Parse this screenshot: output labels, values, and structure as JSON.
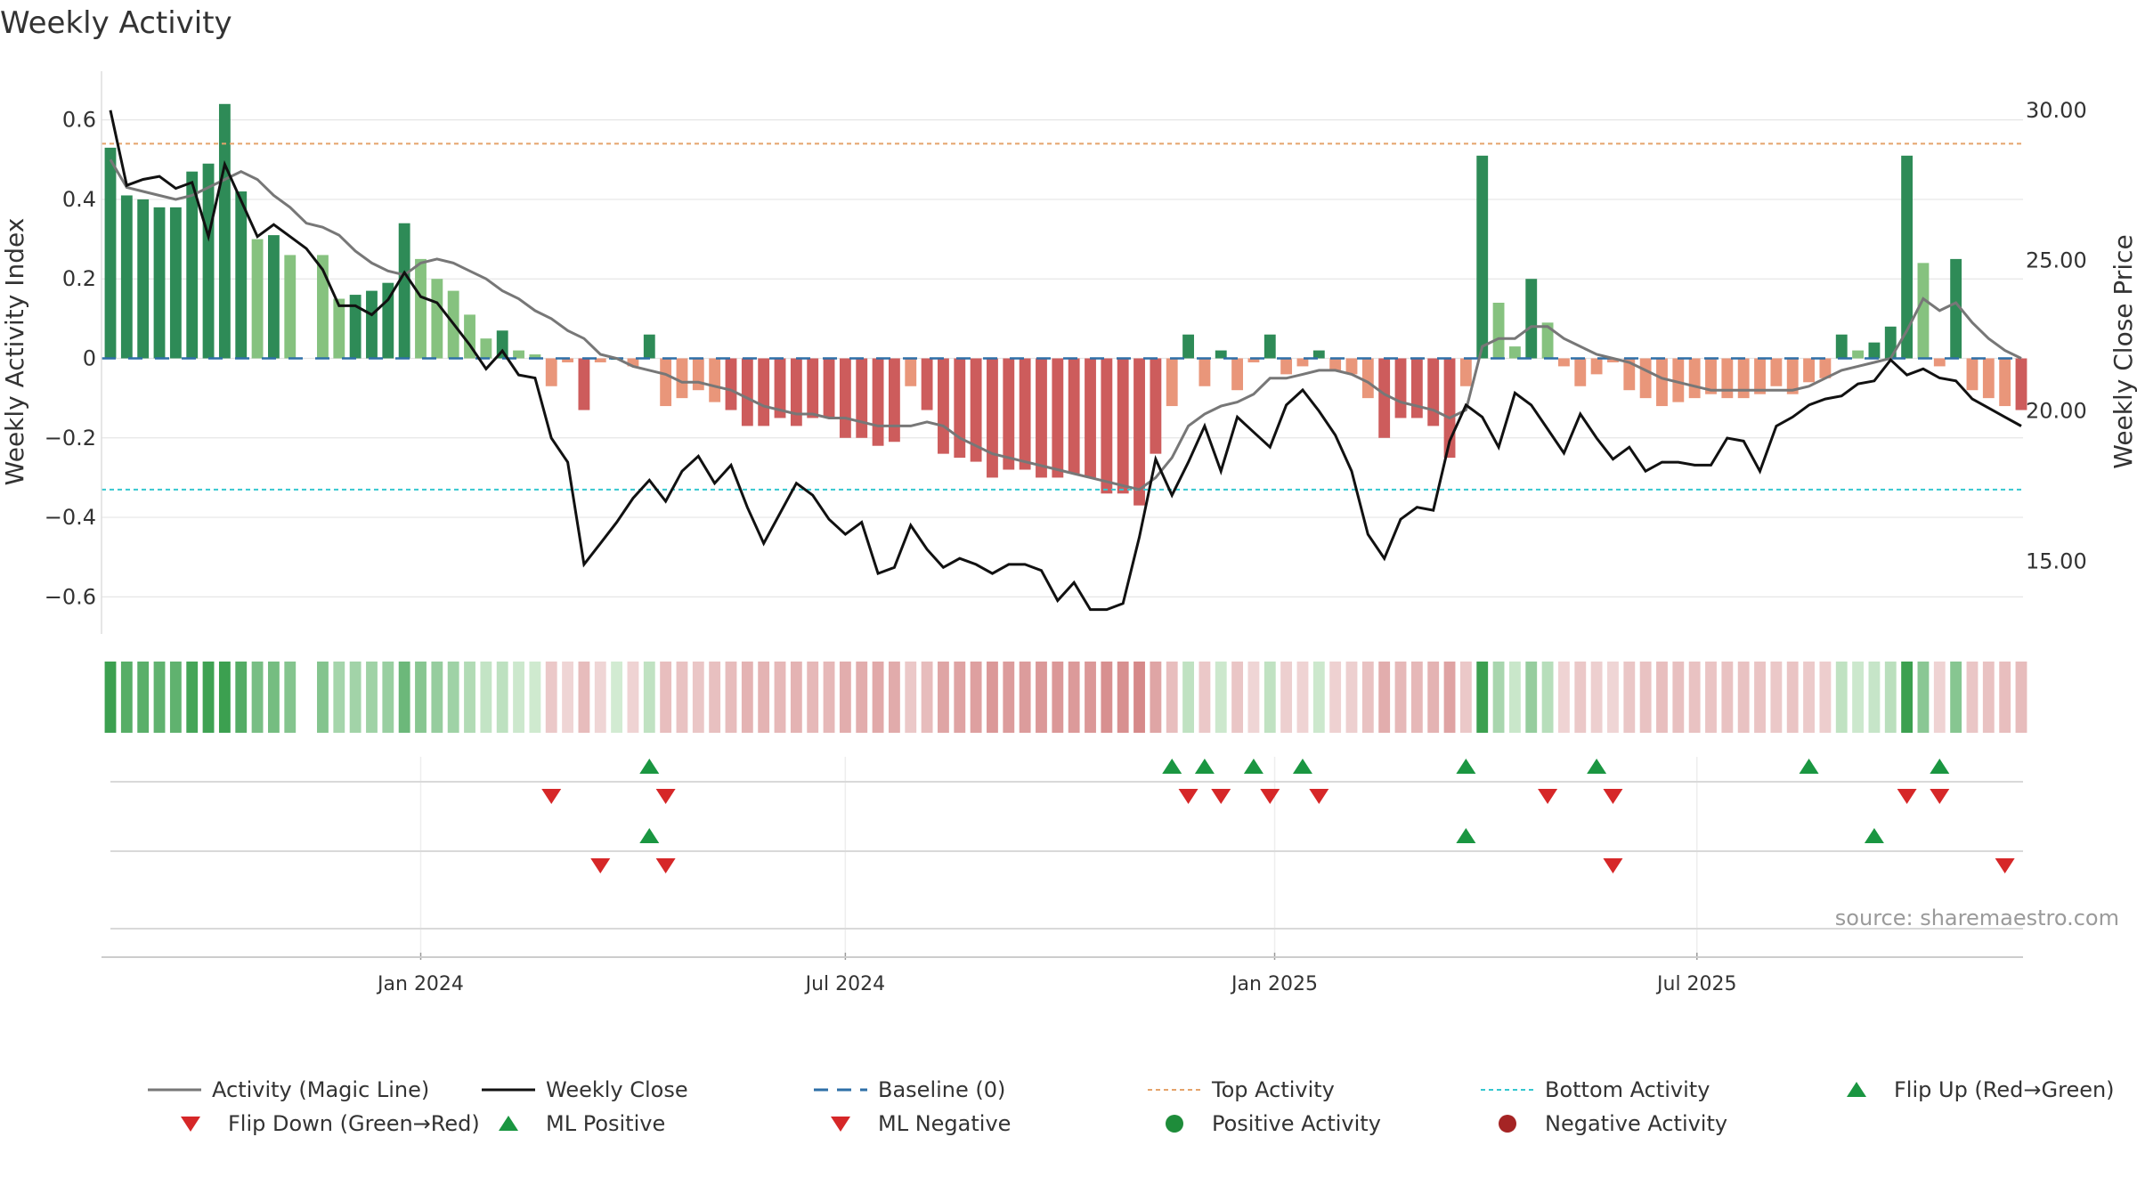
{
  "chart_data": {
    "type": "bar",
    "title": "Weekly Activity",
    "ylabel": "Weekly Activity Index",
    "y2label": "Weekly Close Price",
    "ylim": [
      -0.7,
      0.7
    ],
    "y2lim": [
      12.5,
      31.0
    ],
    "yticks": [
      {
        "v": 0.6,
        "t": "0.6"
      },
      {
        "v": 0.4,
        "t": "0.4"
      },
      {
        "v": 0.2,
        "t": "0.2"
      },
      {
        "v": 0,
        "t": "0"
      },
      {
        "v": -0.2,
        "t": "−0.2"
      },
      {
        "v": -0.4,
        "t": "−0.4"
      },
      {
        "v": -0.6,
        "t": "−0.6"
      }
    ],
    "y2ticks": [
      {
        "v": 30,
        "t": "30.00"
      },
      {
        "v": 25,
        "t": "25.00"
      },
      {
        "v": 20,
        "t": "20.00"
      },
      {
        "v": 15,
        "t": "15.00"
      }
    ],
    "start_date": "2023-08-21",
    "xticks": [
      {
        "d": "2024-01-01",
        "t": "Jan 2024"
      },
      {
        "d": "2024-07-01",
        "t": "Jul 2024"
      },
      {
        "d": "2025-01-01",
        "t": "Jan 2025"
      },
      {
        "d": "2025-07-01",
        "t": "Jul 2025"
      }
    ],
    "top_activity": 0.54,
    "bottom_activity": -0.33,
    "series": [
      {
        "name": "Weekly Activity Index",
        "values": [
          0.53,
          0.41,
          0.4,
          0.38,
          0.38,
          0.47,
          0.49,
          0.64,
          0.42,
          0.3,
          0.31,
          0.26,
          null,
          0.26,
          0.15,
          0.16,
          0.17,
          0.19,
          0.34,
          0.25,
          0.2,
          0.17,
          0.11,
          0.05,
          0.07,
          0.02,
          0.01,
          -0.07,
          -0.01,
          -0.13,
          -0.01,
          0,
          -0.02,
          0.06,
          -0.12,
          -0.1,
          -0.08,
          -0.11,
          -0.13,
          -0.17,
          -0.17,
          -0.15,
          -0.17,
          -0.15,
          -0.15,
          -0.2,
          -0.2,
          -0.22,
          -0.21,
          -0.07,
          -0.13,
          -0.24,
          -0.25,
          -0.26,
          -0.3,
          -0.28,
          -0.28,
          -0.3,
          -0.3,
          -0.29,
          -0.3,
          -0.34,
          -0.34,
          -0.37,
          -0.24,
          -0.12,
          0.06,
          -0.07,
          0.02,
          -0.08,
          -0.01,
          0.06,
          -0.04,
          -0.02,
          0.02,
          -0.03,
          -0.04,
          -0.1,
          -0.2,
          -0.15,
          -0.15,
          -0.17,
          -0.25,
          -0.07,
          0.51,
          0.14,
          0.03,
          0.2,
          0.09,
          -0.02,
          -0.07,
          -0.04,
          -0.01,
          -0.08,
          -0.1,
          -0.12,
          -0.11,
          -0.1,
          -0.09,
          -0.1,
          -0.1,
          -0.09,
          -0.07,
          -0.09,
          -0.06,
          -0.05,
          0.06,
          0.02,
          0.04,
          0.08,
          0.51,
          0.24,
          -0.02,
          0.25,
          -0.08,
          -0.1,
          -0.12,
          -0.13
        ]
      },
      {
        "name": "Activity (Magic Line)",
        "values": [
          0.5,
          0.43,
          0.42,
          0.41,
          0.4,
          0.41,
          0.43,
          0.45,
          0.47,
          0.45,
          0.41,
          0.38,
          0.34,
          0.33,
          0.31,
          0.27,
          0.24,
          0.22,
          0.21,
          0.24,
          0.25,
          0.24,
          0.22,
          0.2,
          0.17,
          0.15,
          0.12,
          0.1,
          0.07,
          0.05,
          0.01,
          0,
          -0.02,
          -0.03,
          -0.04,
          -0.06,
          -0.06,
          -0.07,
          -0.08,
          -0.1,
          -0.12,
          -0.13,
          -0.14,
          -0.14,
          -0.15,
          -0.15,
          -0.16,
          -0.17,
          -0.17,
          -0.17,
          -0.16,
          -0.17,
          -0.2,
          -0.22,
          -0.24,
          -0.25,
          -0.26,
          -0.27,
          -0.28,
          -0.29,
          -0.3,
          -0.31,
          -0.32,
          -0.33,
          -0.3,
          -0.25,
          -0.17,
          -0.14,
          -0.12,
          -0.11,
          -0.09,
          -0.05,
          -0.05,
          -0.04,
          -0.03,
          -0.03,
          -0.04,
          -0.06,
          -0.09,
          -0.11,
          -0.12,
          -0.13,
          -0.15,
          -0.13,
          0.03,
          0.05,
          0.05,
          0.08,
          0.08,
          0.05,
          0.03,
          0.01,
          0,
          -0.01,
          -0.03,
          -0.05,
          -0.06,
          -0.07,
          -0.08,
          -0.08,
          -0.08,
          -0.08,
          -0.08,
          -0.08,
          -0.07,
          -0.05,
          -0.03,
          -0.02,
          -0.01,
          0,
          0.07,
          0.15,
          0.12,
          0.14,
          0.09,
          0.05,
          0.02,
          0
        ]
      },
      {
        "name": "Weekly Close",
        "values": [
          30.0,
          27.5,
          27.7,
          27.8,
          27.4,
          27.6,
          25.8,
          28.2,
          27.0,
          25.8,
          26.2,
          25.8,
          25.4,
          24.7,
          23.5,
          23.5,
          23.2,
          23.7,
          24.6,
          23.8,
          23.6,
          22.9,
          22.2,
          21.4,
          22.0,
          21.2,
          21.1,
          19.1,
          18.3,
          14.9,
          15.6,
          16.3,
          17.1,
          17.7,
          17.0,
          18.0,
          18.5,
          17.6,
          18.2,
          16.8,
          15.6,
          16.6,
          17.6,
          17.2,
          16.4,
          15.9,
          16.3,
          14.6,
          14.8,
          16.2,
          15.4,
          14.8,
          15.1,
          14.9,
          14.6,
          14.9,
          14.9,
          14.7,
          13.7,
          14.3,
          13.4,
          13.4,
          13.6,
          15.8,
          18.4,
          17.2,
          18.3,
          19.5,
          18.0,
          19.8,
          19.3,
          18.8,
          20.2,
          20.7,
          20.0,
          19.2,
          18.0,
          15.9,
          15.1,
          16.4,
          16.8,
          16.7,
          19.0,
          20.2,
          19.8,
          18.8,
          20.6,
          20.2,
          19.4,
          18.6,
          19.9,
          19.1,
          18.4,
          18.8,
          18.0,
          18.3,
          18.3,
          18.2,
          18.2,
          19.1,
          19.0,
          18.0,
          19.5,
          19.8,
          20.2,
          20.4,
          20.5,
          20.9,
          21.0,
          21.7,
          21.2,
          21.4,
          21.1,
          21.0,
          20.4,
          20.1,
          19.8,
          19.5
        ]
      }
    ],
    "ml_positive_idx": [
      33,
      65,
      67,
      70,
      73,
      83,
      91,
      104,
      112
    ],
    "ml_negative_idx": [
      27,
      34,
      66,
      68,
      71,
      74,
      88,
      92,
      110,
      112
    ],
    "flip_up_idx": [
      33,
      83,
      108
    ],
    "flip_down_idx": [
      30,
      34,
      92,
      116
    ],
    "source": "source: sharemaestro.com",
    "legend": {
      "placement": "bottom",
      "items": [
        {
          "label": "Activity (Magic Line)",
          "kind": "line",
          "color": "#777777"
        },
        {
          "label": "Weekly Close",
          "kind": "line",
          "color": "#111111"
        },
        {
          "label": "Baseline (0)",
          "kind": "dash",
          "color": "#2e6fa7"
        },
        {
          "label": "Top Activity",
          "kind": "dot",
          "color": "#e5a36b"
        },
        {
          "label": "Bottom Activity",
          "kind": "dot",
          "color": "#35c7cf"
        },
        {
          "label": "Flip Up (Red→Green)",
          "kind": "tri-up",
          "color": "#1a9641"
        },
        {
          "label": "Flip Down (Green→Red)",
          "kind": "tri-down",
          "color": "#d62728"
        },
        {
          "label": "ML Positive",
          "kind": "tri-up",
          "color": "#1a9641"
        },
        {
          "label": "ML Negative",
          "kind": "tri-down",
          "color": "#d62728"
        },
        {
          "label": "Positive Activity",
          "kind": "circle",
          "color": "#1e8c3a"
        },
        {
          "label": "Negative Activity",
          "kind": "circle",
          "color": "#a52424"
        }
      ]
    },
    "colors": {
      "pos_strong": "#2e8b57",
      "pos_light": "#86c27f",
      "neg_strong": "#cd5c5c",
      "neg_light": "#e9967a",
      "grid": "#e6e6e6"
    }
  }
}
